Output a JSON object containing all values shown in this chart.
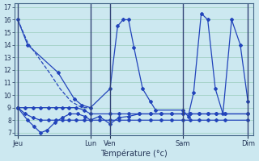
{
  "background_color": "#cce8f0",
  "grid_color": "#99ccbb",
  "line_color": "#2244bb",
  "ylim": [
    7,
    17
  ],
  "yticks": [
    7,
    8,
    9,
    10,
    11,
    12,
    13,
    14,
    15,
    16,
    17
  ],
  "xlabel": "Température (°c)",
  "xlim": [
    0,
    220
  ],
  "x_tick_pos": [
    3,
    70,
    88,
    155,
    215
  ],
  "x_tick_labels": [
    "Jeu",
    "Lun",
    "Ven",
    "Sam",
    "Dim"
  ],
  "series": [
    {
      "x": [
        3,
        12,
        40,
        55,
        62,
        70,
        88,
        95,
        100,
        105,
        110,
        118,
        125,
        130,
        155,
        160,
        165,
        172,
        178,
        185,
        192,
        200,
        208,
        215
      ],
      "y": [
        16,
        14,
        11.8,
        9.7,
        9.2,
        9.0,
        10.5,
        15.5,
        16.0,
        16.0,
        13.8,
        10.5,
        9.5,
        8.8,
        8.8,
        8.3,
        10.2,
        16.5,
        16.0,
        10.5,
        8.5,
        16.0,
        14.0,
        9.5
      ]
    },
    {
      "x": [
        3,
        12,
        18,
        24,
        30,
        37,
        44,
        51,
        58,
        65,
        70,
        78,
        88,
        96,
        105,
        115,
        125,
        135,
        145,
        155,
        162,
        170,
        178,
        186,
        194,
        215
      ],
      "y": [
        9.0,
        8.0,
        7.5,
        7.0,
        7.2,
        7.8,
        8.2,
        8.5,
        8.5,
        8.3,
        8.0,
        8.3,
        7.7,
        8.2,
        8.3,
        8.5,
        8.5,
        8.5,
        8.5,
        8.5,
        8.5,
        8.5,
        8.5,
        8.5,
        8.5,
        8.5
      ]
    },
    {
      "x": [
        3,
        10,
        17,
        24,
        31,
        38,
        44,
        50,
        57,
        64,
        70,
        88,
        96,
        105,
        115,
        125,
        135,
        145,
        155,
        162,
        170,
        178,
        186,
        194,
        215
      ],
      "y": [
        9.0,
        9.0,
        9.0,
        9.0,
        9.0,
        9.0,
        9.0,
        9.0,
        9.0,
        8.8,
        8.5,
        8.5,
        8.5,
        8.5,
        8.5,
        8.5,
        8.5,
        8.5,
        8.5,
        8.5,
        8.5,
        8.5,
        8.5,
        8.5,
        8.5
      ]
    },
    {
      "x": [
        3,
        10,
        17,
        24,
        31,
        38,
        44,
        50,
        57,
        64,
        70,
        78,
        88,
        96,
        105,
        115,
        125,
        135,
        145,
        155,
        162,
        170,
        178,
        186,
        194,
        215
      ],
      "y": [
        9.0,
        8.5,
        8.2,
        8.0,
        8.0,
        8.0,
        8.0,
        8.0,
        8.0,
        8.0,
        8.0,
        8.0,
        8.0,
        8.0,
        8.0,
        8.0,
        8.0,
        8.0,
        8.0,
        8.0,
        8.0,
        8.0,
        8.0,
        8.0,
        8.0,
        8.0
      ]
    },
    {
      "x": [
        3,
        12,
        22,
        32,
        42,
        52,
        62,
        70
      ],
      "y": [
        16,
        14.2,
        13.0,
        11.8,
        10.5,
        9.5,
        9.0,
        9.0
      ]
    }
  ],
  "series_markers": [
    true,
    true,
    true,
    true,
    false
  ]
}
